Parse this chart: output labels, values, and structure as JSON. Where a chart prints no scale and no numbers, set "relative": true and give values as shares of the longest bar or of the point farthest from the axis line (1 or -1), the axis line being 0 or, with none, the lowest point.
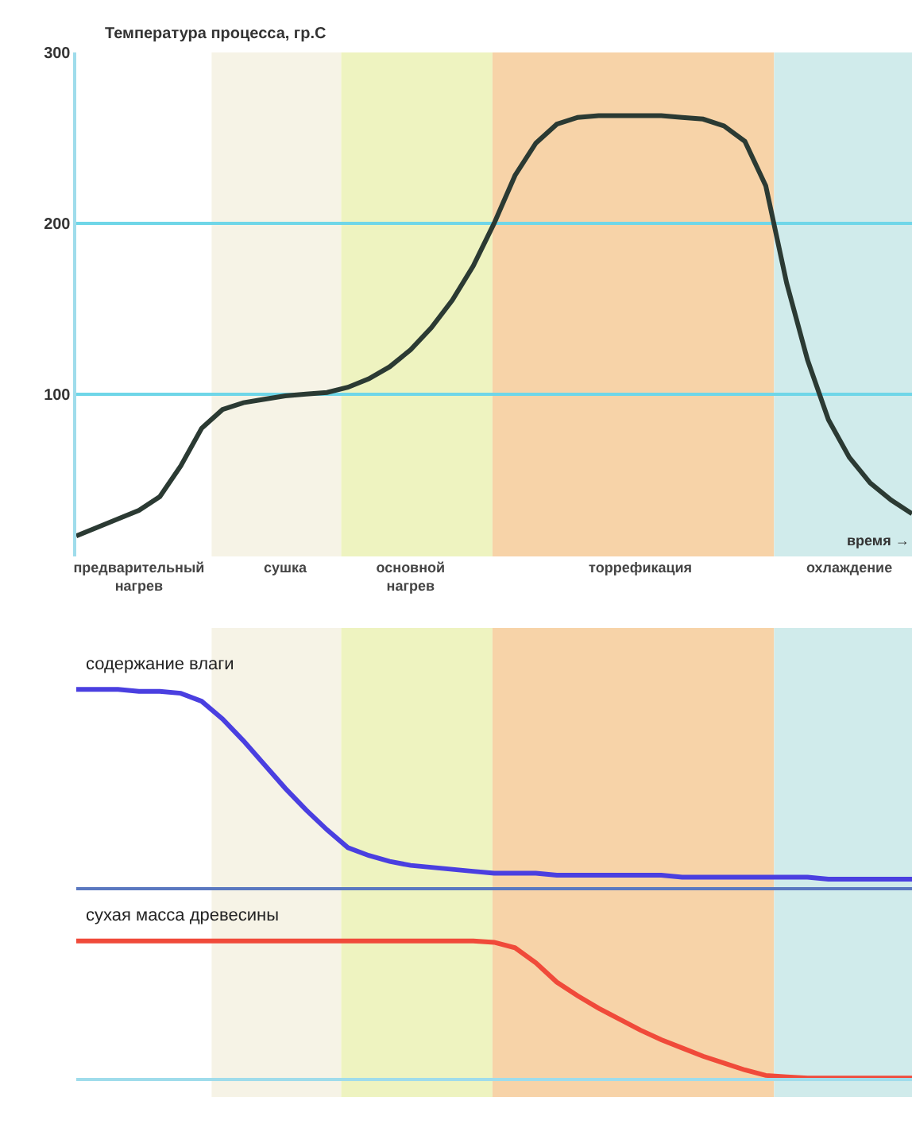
{
  "chart_data": [
    {
      "type": "line",
      "title": "Температура процесса, гр.С",
      "categories": [
        null,
        null,
        null,
        "предварительный\nнагрев",
        null,
        null,
        null,
        null,
        null,
        null,
        "сушка",
        null,
        null,
        null,
        null,
        null,
        "основной\nнагрев",
        null,
        null,
        null,
        null,
        null,
        null,
        null,
        null,
        null,
        null,
        "торрефикация",
        null,
        null,
        null,
        null,
        null,
        null,
        null,
        null,
        null,
        "охлаждение",
        null,
        null,
        null
      ],
      "series": [
        {
          "color": "#2b3a33",
          "values": [
            17,
            22,
            27,
            32,
            40,
            58,
            80,
            91,
            95,
            97,
            99,
            100,
            101,
            104,
            109,
            116,
            126,
            139,
            155,
            175,
            200,
            228,
            247,
            258,
            262,
            263,
            263,
            263,
            263,
            262,
            261,
            257,
            248,
            222,
            165,
            120,
            85,
            63,
            48,
            38,
            30
          ]
        }
      ],
      "ylim": [
        5,
        300
      ],
      "yticks": [
        100,
        200,
        300
      ],
      "grid": "y",
      "annotations": [
        "время →"
      ]
    },
    {
      "type": "line",
      "relative": true,
      "categories": [
        null,
        null,
        null,
        null,
        null,
        null,
        null,
        null,
        null,
        null,
        null,
        null,
        null,
        null,
        null,
        null,
        null,
        null,
        null,
        null,
        null,
        null,
        null,
        null,
        null,
        null,
        null,
        null,
        null,
        null,
        null,
        null,
        null,
        null,
        null,
        null,
        null,
        null,
        null,
        null,
        null
      ],
      "series": [
        {
          "name": "содержание влаги",
          "color": "#4a3fe0",
          "values": [
            1,
            1,
            1,
            0.99,
            0.99,
            0.98,
            0.94,
            0.85,
            0.74,
            0.62,
            0.5,
            0.39,
            0.29,
            0.2,
            0.16,
            0.13,
            0.11,
            0.1,
            0.09,
            0.08,
            0.07,
            0.07,
            0.07,
            0.06,
            0.06,
            0.06,
            0.06,
            0.06,
            0.06,
            0.05,
            0.05,
            0.05,
            0.05,
            0.05,
            0.05,
            0.05,
            0.04,
            0.04,
            0.04,
            0.04,
            0.04
          ]
        }
      ]
    },
    {
      "type": "line",
      "relative": true,
      "categories": [
        null,
        null,
        null,
        null,
        null,
        null,
        null,
        null,
        null,
        null,
        null,
        null,
        null,
        null,
        null,
        null,
        null,
        null,
        null,
        null,
        null,
        null,
        null,
        null,
        null,
        null,
        null,
        null,
        null,
        null,
        null,
        null,
        null,
        null,
        null,
        null,
        null,
        null,
        null,
        null,
        null
      ],
      "series": [
        {
          "name": "сухая масса древесины",
          "color": "#f04a3a",
          "values": [
            1,
            1,
            1,
            1,
            1,
            1,
            1,
            1,
            1,
            1,
            1,
            1,
            1,
            1,
            1,
            1,
            1,
            1,
            1,
            1,
            0.99,
            0.95,
            0.84,
            0.7,
            0.6,
            0.51,
            0.43,
            0.35,
            0.28,
            0.22,
            0.16,
            0.11,
            0.06,
            0.02,
            0.01,
            0,
            0,
            0,
            0,
            0,
            0
          ]
        }
      ]
    }
  ]
}
